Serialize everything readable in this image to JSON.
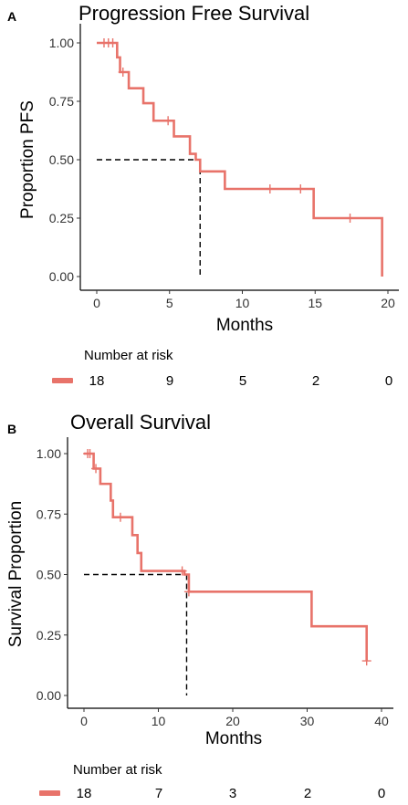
{
  "chart_data": [
    {
      "panel": "A",
      "type": "line",
      "step": true,
      "title": "Progression Free Survival",
      "xlabel": "Months",
      "ylabel": "Proportion PFS",
      "xlim": [
        0,
        20
      ],
      "ylim": [
        0,
        1
      ],
      "xticks": [
        0,
        5,
        10,
        15,
        20
      ],
      "yticks": [
        "0.00",
        "0.25",
        "0.50",
        "0.75",
        "1.00"
      ],
      "grid": false,
      "color": "#E8736A",
      "series": [
        {
          "x": [
            0,
            1.4,
            1.6,
            2.2,
            3.2,
            3.9,
            5.3,
            6.4,
            6.8,
            7.1,
            8.8,
            14.9,
            19.6
          ],
          "y": [
            1.0,
            0.938,
            0.875,
            0.806,
            0.742,
            0.667,
            0.6,
            0.525,
            0.5,
            0.45,
            0.375,
            0.25,
            0.0
          ]
        }
      ],
      "censored": [
        {
          "x": 0.5,
          "y": 1.0
        },
        {
          "x": 0.8,
          "y": 1.0
        },
        {
          "x": 1.1,
          "y": 1.0
        },
        {
          "x": 1.8,
          "y": 0.875
        },
        {
          "x": 4.9,
          "y": 0.667
        },
        {
          "x": 11.9,
          "y": 0.375
        },
        {
          "x": 14.0,
          "y": 0.375
        },
        {
          "x": 17.4,
          "y": 0.25
        }
      ],
      "median": {
        "x": 7.1,
        "y": 0.5
      },
      "risk_table": {
        "title": "Number at risk",
        "values": [
          "18",
          "9",
          "5",
          "2",
          "0"
        ]
      }
    },
    {
      "panel": "B",
      "type": "line",
      "step": true,
      "title": "Overall Survival",
      "xlabel": "Months",
      "ylabel": "Survival Proportion",
      "xlim": [
        0,
        40
      ],
      "ylim": [
        0,
        1
      ],
      "xticks": [
        0,
        10,
        20,
        30,
        40
      ],
      "yticks": [
        "0.00",
        "0.25",
        "0.50",
        "0.75",
        "1.00"
      ],
      "grid": false,
      "color": "#E8736A",
      "series": [
        {
          "x": [
            0,
            1.3,
            2.2,
            3.6,
            3.9,
            6.5,
            7.2,
            7.7,
            13.5,
            14.1,
            29.5,
            30.6,
            38
          ],
          "y": [
            1.0,
            0.938,
            0.875,
            0.806,
            0.737,
            0.663,
            0.589,
            0.515,
            0.5,
            0.429,
            0.429,
            0.286,
            0.143
          ]
        }
      ],
      "censored": [
        {
          "x": 0.5,
          "y": 1.0
        },
        {
          "x": 0.8,
          "y": 1.0
        },
        {
          "x": 1.6,
          "y": 0.938
        },
        {
          "x": 4.9,
          "y": 0.737
        },
        {
          "x": 13.2,
          "y": 0.515
        },
        {
          "x": 14.1,
          "y": 0.429
        },
        {
          "x": 38.0,
          "y": 0.143
        }
      ],
      "median": {
        "x": 13.8,
        "y": 0.5
      },
      "risk_table": {
        "title": "Number at risk",
        "values": [
          "18",
          "7",
          "3",
          "2",
          "0"
        ]
      }
    }
  ]
}
